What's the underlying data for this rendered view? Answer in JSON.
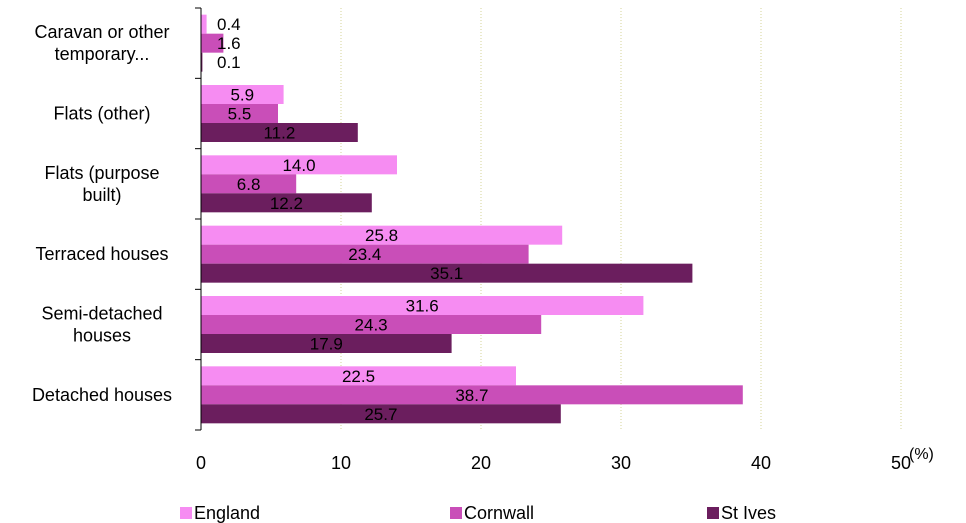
{
  "chart_data": {
    "type": "bar",
    "orientation": "horizontal",
    "categories": [
      [
        "Caravan or other",
        "temporary..."
      ],
      [
        "Flats (other)"
      ],
      [
        "Flats (purpose",
        "built)"
      ],
      [
        "Terraced houses"
      ],
      [
        "Semi-detached",
        "houses"
      ],
      [
        "Detached houses"
      ]
    ],
    "series": [
      {
        "name": "England",
        "color": "#f68cf2",
        "values": [
          0.4,
          5.9,
          14.0,
          25.8,
          31.6,
          22.5
        ],
        "labels": [
          "0.4",
          "5.9",
          "14.0",
          "25.8",
          "31.6",
          "22.5"
        ]
      },
      {
        "name": "Cornwall",
        "color": "#c94eb8",
        "values": [
          1.6,
          5.5,
          6.8,
          23.4,
          24.3,
          38.7
        ],
        "labels": [
          "1.6",
          "5.5",
          "6.8",
          "23.4",
          "24.3",
          "38.7"
        ]
      },
      {
        "name": "St Ives",
        "color": "#6b1e5e",
        "values": [
          0.1,
          11.2,
          12.2,
          35.1,
          17.9,
          25.7
        ],
        "labels": [
          "0.1",
          "11.2",
          "12.2",
          "35.1",
          "17.9",
          "25.7"
        ]
      }
    ],
    "xlim": [
      0,
      50
    ],
    "xticks": [
      "0",
      "10",
      "20",
      "30",
      "40",
      "50"
    ],
    "xunit": "(%)",
    "grid": "vertical-dotted",
    "legend_position": "bottom"
  }
}
